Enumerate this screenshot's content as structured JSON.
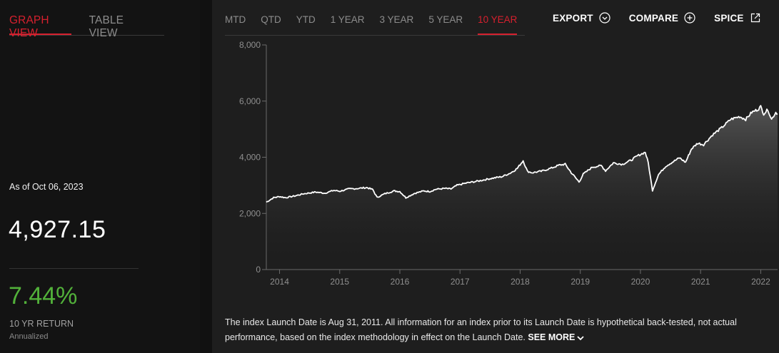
{
  "view_tabs": [
    {
      "label": "GRAPH VIEW",
      "active": true
    },
    {
      "label": "TABLE VIEW",
      "active": false
    }
  ],
  "summary": {
    "as_of": "As of Oct 06, 2023",
    "level": "4,927.15",
    "return_value": "7.44%",
    "return_label": "10 YR RETURN",
    "return_sub": "Annualized"
  },
  "period_tabs": [
    {
      "label": "MTD",
      "active": false
    },
    {
      "label": "QTD",
      "active": false
    },
    {
      "label": "YTD",
      "active": false
    },
    {
      "label": "1 YEAR",
      "active": false
    },
    {
      "label": "3 YEAR",
      "active": false
    },
    {
      "label": "5 YEAR",
      "active": false
    },
    {
      "label": "10 YEAR",
      "active": true
    }
  ],
  "actions": {
    "export_label": "EXPORT",
    "export_icon": "chevron-circle-down-icon",
    "compare_label": "COMPARE",
    "compare_icon": "plus-circle-icon",
    "spice_label": "SPICE",
    "spice_icon": "external-link-icon"
  },
  "colors": {
    "accent": "#d6202e",
    "positive": "#52b13a",
    "line": "#ffffff"
  },
  "chart_data": {
    "type": "area",
    "y_ticks": [
      "0",
      "2,000",
      "4,000",
      "6,000",
      "8,000"
    ],
    "x_ticks": [
      "2014",
      "2015",
      "2016",
      "2017",
      "2018",
      "2019",
      "2020",
      "2021",
      "2022"
    ],
    "ylim": [
      0,
      8000
    ],
    "xlim": [
      2013.78,
      2022.28
    ],
    "grid": false,
    "series": [
      {
        "points": [
          [
            2013.78,
            2400
          ],
          [
            2013.9,
            2560
          ],
          [
            2014.0,
            2600
          ],
          [
            2014.1,
            2560
          ],
          [
            2014.25,
            2620
          ],
          [
            2014.4,
            2700
          ],
          [
            2014.6,
            2760
          ],
          [
            2014.75,
            2720
          ],
          [
            2014.9,
            2820
          ],
          [
            2015.0,
            2790
          ],
          [
            2015.15,
            2870
          ],
          [
            2015.3,
            2890
          ],
          [
            2015.45,
            2920
          ],
          [
            2015.55,
            2850
          ],
          [
            2015.62,
            2570
          ],
          [
            2015.75,
            2700
          ],
          [
            2015.9,
            2800
          ],
          [
            2016.0,
            2780
          ],
          [
            2016.1,
            2560
          ],
          [
            2016.25,
            2720
          ],
          [
            2016.4,
            2800
          ],
          [
            2016.5,
            2780
          ],
          [
            2016.6,
            2860
          ],
          [
            2016.75,
            2890
          ],
          [
            2016.85,
            2870
          ],
          [
            2016.95,
            3000
          ],
          [
            2017.1,
            3080
          ],
          [
            2017.3,
            3150
          ],
          [
            2017.5,
            3240
          ],
          [
            2017.7,
            3310
          ],
          [
            2017.85,
            3450
          ],
          [
            2017.95,
            3600
          ],
          [
            2018.05,
            3880
          ],
          [
            2018.12,
            3500
          ],
          [
            2018.2,
            3450
          ],
          [
            2018.35,
            3500
          ],
          [
            2018.5,
            3600
          ],
          [
            2018.65,
            3720
          ],
          [
            2018.75,
            3750
          ],
          [
            2018.85,
            3450
          ],
          [
            2018.98,
            3120
          ],
          [
            2019.05,
            3400
          ],
          [
            2019.2,
            3650
          ],
          [
            2019.35,
            3700
          ],
          [
            2019.42,
            3520
          ],
          [
            2019.55,
            3800
          ],
          [
            2019.7,
            3750
          ],
          [
            2019.85,
            3900
          ],
          [
            2019.95,
            4050
          ],
          [
            2020.08,
            4180
          ],
          [
            2020.13,
            3800
          ],
          [
            2020.2,
            2820
          ],
          [
            2020.3,
            3380
          ],
          [
            2020.42,
            3680
          ],
          [
            2020.55,
            3850
          ],
          [
            2020.65,
            3980
          ],
          [
            2020.75,
            3820
          ],
          [
            2020.85,
            4300
          ],
          [
            2020.95,
            4500
          ],
          [
            2021.05,
            4450
          ],
          [
            2021.2,
            4800
          ],
          [
            2021.35,
            5050
          ],
          [
            2021.5,
            5350
          ],
          [
            2021.65,
            5450
          ],
          [
            2021.75,
            5350
          ],
          [
            2021.85,
            5600
          ],
          [
            2021.95,
            5700
          ],
          [
            2022.0,
            5800
          ],
          [
            2022.05,
            5550
          ],
          [
            2022.12,
            5700
          ],
          [
            2022.18,
            5350
          ],
          [
            2022.25,
            5600
          ],
          [
            2022.28,
            5550
          ]
        ]
      }
    ]
  },
  "note": {
    "text": "The index Launch Date is Aug 31, 2011. All information for an index prior to its Launch Date is hypothetical back-tested, not actual performance, based on the index methodology in effect on the Launch Date.",
    "see_more": "SEE MORE",
    "see_more_icon": "chevron-down-icon"
  }
}
